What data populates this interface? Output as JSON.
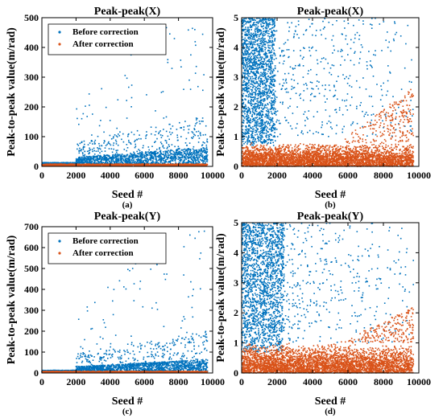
{
  "colors": {
    "before": "#0072BD",
    "after": "#D95319"
  },
  "chart_data": [
    {
      "type": "scatter",
      "id": "a",
      "caption": "(a)",
      "title": "Peak-peak(X)",
      "xlabel": "Seed #",
      "ylabel": "Peak-to-peak value(m/rad)",
      "xlim": [
        0,
        10000
      ],
      "ylim": [
        0,
        500
      ],
      "xticks": [
        "0",
        "2000",
        "4000",
        "6000",
        "8000",
        "10000"
      ],
      "yticks": [
        "0",
        "100",
        "200",
        "300",
        "400",
        "500"
      ],
      "legend": {
        "position": "top-left",
        "entries": [
          "Before correction",
          "After correction"
        ]
      },
      "series": [
        {
          "name": "Before correction",
          "color": "#0072BD",
          "n_points": 2000,
          "x_range": [
            0,
            9700
          ],
          "trend": "rises after seed 2000; most under 50, outliers up to about 480"
        },
        {
          "name": "After correction",
          "color": "#D95319",
          "n_points": 1300,
          "x_range": [
            0,
            9700
          ],
          "trend": "near 0, under 10"
        }
      ]
    },
    {
      "type": "scatter",
      "id": "b",
      "caption": "(b)",
      "title": "Peak-peak(X)",
      "xlabel": "Seed #",
      "ylabel": "Peak-to-peak value(m/rad)",
      "xlim": [
        0,
        10000
      ],
      "ylim": [
        0,
        5
      ],
      "xticks": [
        "0",
        "2000",
        "4000",
        "6000",
        "8000",
        "10000"
      ],
      "yticks": [
        "0",
        "1",
        "2",
        "3",
        "4",
        "5"
      ],
      "series": [
        {
          "name": "Before correction",
          "color": "#0072BD",
          "n_points": 2500,
          "x_range": [
            0,
            9700
          ],
          "trend": "dense 0.7–5 for seeds below 2000, sparse above"
        },
        {
          "name": "After correction",
          "color": "#D95319",
          "n_points": 3800,
          "x_range": [
            0,
            9700
          ],
          "trend": "band 0–0.8, rising to about 2.5 near seed 9000"
        }
      ]
    },
    {
      "type": "scatter",
      "id": "c",
      "caption": "(c)",
      "title": "Peak-peak(Y)",
      "xlabel": "Seed #",
      "ylabel": "Peak-to-peak value(m/rad)",
      "xlim": [
        0,
        10000
      ],
      "ylim": [
        0,
        700
      ],
      "xticks": [
        "0",
        "2000",
        "4000",
        "6000",
        "8000",
        "10000"
      ],
      "yticks": [
        "0",
        "100",
        "200",
        "300",
        "400",
        "500",
        "600",
        "700"
      ],
      "legend": {
        "position": "top-left",
        "entries": [
          "Before correction",
          "After correction"
        ]
      },
      "series": [
        {
          "name": "Before correction",
          "color": "#0072BD",
          "n_points": 2000,
          "x_range": [
            0,
            9700
          ],
          "trend": "rises after seed 2000; outliers up to about 680"
        },
        {
          "name": "After correction",
          "color": "#D95319",
          "n_points": 1300,
          "x_range": [
            0,
            9700
          ],
          "trend": "near 0"
        }
      ]
    },
    {
      "type": "scatter",
      "id": "d",
      "caption": "(d)",
      "title": "Peak-peak(Y)",
      "xlabel": "Seed #",
      "ylabel": "Peak-to-peak value(m/rad)",
      "xlim": [
        0,
        10000
      ],
      "ylim": [
        0,
        5
      ],
      "xticks": [
        "0",
        "2000",
        "4000",
        "6000",
        "8000",
        "10000"
      ],
      "yticks": [
        "0",
        "1",
        "2",
        "3",
        "4",
        "5"
      ],
      "series": [
        {
          "name": "Before correction",
          "color": "#0072BD",
          "n_points": 2500,
          "x_range": [
            0,
            9700
          ],
          "trend": "dense 0.7–5 for seeds below 2500, sparse above"
        },
        {
          "name": "After correction",
          "color": "#D95319",
          "n_points": 3800,
          "x_range": [
            0,
            9700
          ],
          "trend": "band 0–1.0, rising to about 2 near seed 9000"
        }
      ]
    }
  ]
}
